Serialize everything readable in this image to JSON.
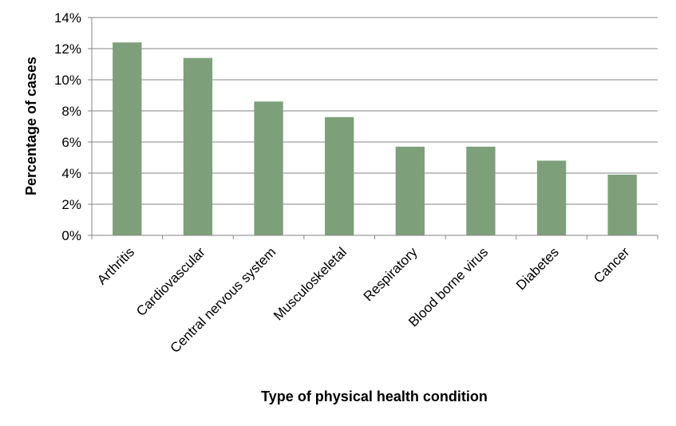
{
  "chart_data": {
    "type": "bar",
    "xlabel": "Type of physical health condition",
    "ylabel": "Percentage of cases",
    "categories": [
      "Arthritis",
      "Cardiovascular",
      "Central nervous system",
      "Musculoskeletal",
      "Respiratory",
      "Blood borne virus",
      "Diabetes",
      "Cancer"
    ],
    "values": [
      12.4,
      11.4,
      8.6,
      7.6,
      5.7,
      5.7,
      4.8,
      3.9
    ],
    "ylim": [
      0,
      14
    ],
    "yticks": [
      0,
      2,
      4,
      6,
      8,
      10,
      12,
      14
    ],
    "ytick_labels": [
      "0%",
      "2%",
      "4%",
      "6%",
      "8%",
      "10%",
      "12%",
      "14%"
    ],
    "grid": true,
    "legend": "none",
    "bar_color": "#7da07a",
    "grid_color": "#868686"
  }
}
